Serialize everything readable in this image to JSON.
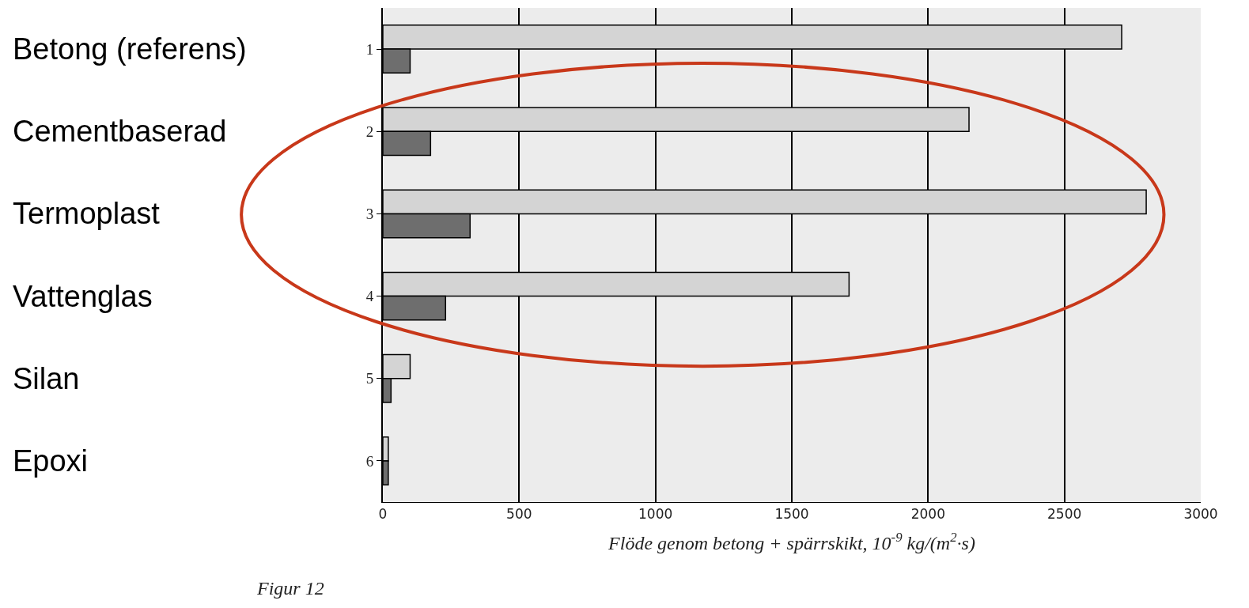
{
  "chart_data": {
    "type": "bar",
    "orientation": "horizontal",
    "categories": [
      "1",
      "2",
      "3",
      "4",
      "5",
      "6"
    ],
    "series": [
      {
        "color": "#d4d4d4",
        "values": [
          2710,
          2150,
          2800,
          1710,
          100,
          20
        ]
      },
      {
        "color": "#6e6e6e",
        "values": [
          100,
          175,
          320,
          230,
          30,
          20
        ]
      }
    ],
    "xlim": [
      0,
      3000
    ],
    "xticks": [
      0,
      500,
      1000,
      1500,
      2000,
      2500,
      3000
    ],
    "grid": "x",
    "xlabel": "Flöde genom betong + spärrskikt, 10$^{-9}$ kg/(m$^{2}$·s)",
    "annotations": [
      "Betong (referens)",
      "Cementbaserad",
      "Termoplast",
      "Vattenglas",
      "Silan",
      "Epoxi",
      "Figur 12"
    ]
  }
}
